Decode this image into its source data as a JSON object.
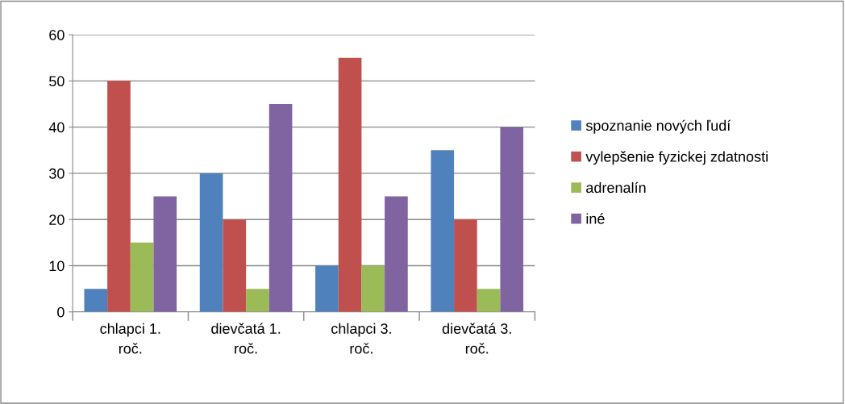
{
  "chart_data": {
    "type": "bar",
    "categories": [
      "chlapci 1. roč.",
      "dievčatá 1. roč.",
      "chlapci 3. roč.",
      "dievčatá 3. roč."
    ],
    "series": [
      {
        "name": "spoznanie nových ľudí",
        "color": "#4f81bd",
        "values": [
          5,
          30,
          10,
          35
        ]
      },
      {
        "name": "vylepšenie fyzickej zdatnosti",
        "color": "#c0504d",
        "values": [
          50,
          20,
          55,
          20
        ]
      },
      {
        "name": "adrenalín",
        "color": "#9bbb59",
        "values": [
          15,
          5,
          10,
          5
        ]
      },
      {
        "name": "iné",
        "color": "#8064a2",
        "values": [
          25,
          45,
          25,
          40
        ]
      }
    ],
    "ylim": [
      0,
      60
    ],
    "yticks": [
      0,
      10,
      20,
      30,
      40,
      50,
      60
    ],
    "grid": "y",
    "legend": "right"
  }
}
